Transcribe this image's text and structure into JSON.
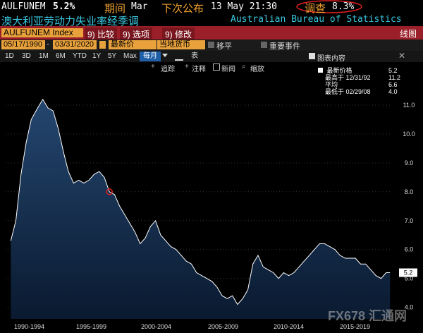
{
  "header": {
    "ticker": "AULFUNEM",
    "value": "5.2%",
    "period_label": "期间",
    "period_value": "Mar",
    "next_release_label": "下次公布",
    "next_release_value": "13 May 21:30",
    "survey_label": "调查",
    "survey_value": "8.3%",
    "title_cn": "澳大利亚劳动力失业率经季调",
    "source": "Australian Bureau of Statistics"
  },
  "toolbar": {
    "index_field": "AULFUNEM Index",
    "compare": "9) 比较",
    "options": "9) 选项",
    "edit": "9) 修改",
    "chart_label": "线图"
  },
  "controls": {
    "start_date": "05/17/1990",
    "end_date": "03/31/2020",
    "price_field": "最新价",
    "currency_field": "当地货币",
    "smooth_label": "移平",
    "events_label": "重要事件"
  },
  "ranges": {
    "items": [
      "1D",
      "3D",
      "1M",
      "6M",
      "YTD",
      "1Y",
      "5Y",
      "Max"
    ],
    "frequency": "每月",
    "chart_icon_label": "表",
    "table_content": "图表内容"
  },
  "tools": {
    "track": "追踪",
    "annotate": "注释",
    "news": "新闻",
    "zoom": "缩放"
  },
  "legend": {
    "latest_label": "最新价格",
    "latest_value": "5.2",
    "high_label": "最高于",
    "high_date": "12/31/92",
    "high_value": "11.2",
    "avg_label": "平均",
    "avg_value": "6.6",
    "low_label": "最低于",
    "low_date": "02/29/08",
    "low_value": "4.0"
  },
  "watermark": "FX678 汇通网",
  "chart_data": {
    "type": "area",
    "ylim": [
      3.6,
      12.0
    ],
    "yticks": [
      4.0,
      5.0,
      6.0,
      7.0,
      8.0,
      9.0,
      10.0,
      11.0
    ],
    "last_label": "5.2",
    "x_labels": [
      "1990-1994",
      "1995-1999",
      "2000-2004",
      "2005-2009",
      "2010-2014",
      "2015-2019"
    ],
    "x": [
      1990.4,
      1990.8,
      1991.2,
      1991.6,
      1992.0,
      1992.5,
      1992.9,
      1993.3,
      1993.7,
      1994.1,
      1994.5,
      1994.9,
      1995.3,
      1995.7,
      1996.1,
      1996.5,
      1996.9,
      1997.3,
      1997.7,
      1998.1,
      1998.5,
      1998.9,
      1999.3,
      1999.7,
      2000.1,
      2000.5,
      2000.9,
      2001.3,
      2001.7,
      2002.1,
      2002.5,
      2002.9,
      2003.3,
      2003.7,
      2004.1,
      2004.5,
      2004.9,
      2005.3,
      2005.7,
      2006.1,
      2006.5,
      2006.9,
      2007.3,
      2007.7,
      2008.1,
      2008.5,
      2008.9,
      2009.3,
      2009.7,
      2010.1,
      2010.5,
      2010.9,
      2011.3,
      2011.7,
      2012.1,
      2012.5,
      2012.9,
      2013.3,
      2013.7,
      2014.1,
      2014.5,
      2014.9,
      2015.3,
      2015.7,
      2016.1,
      2016.5,
      2016.9,
      2017.3,
      2017.7,
      2018.1,
      2018.5,
      2018.9,
      2019.3,
      2019.7,
      2020.0
    ],
    "values": [
      6.3,
      7.0,
      8.6,
      9.7,
      10.5,
      10.9,
      11.2,
      10.9,
      10.8,
      10.2,
      9.4,
      8.7,
      8.3,
      8.4,
      8.3,
      8.4,
      8.6,
      8.7,
      8.5,
      8.0,
      7.9,
      7.5,
      7.2,
      6.9,
      6.6,
      6.2,
      6.4,
      6.8,
      7.0,
      6.5,
      6.3,
      6.1,
      6.0,
      5.8,
      5.6,
      5.5,
      5.2,
      5.1,
      5.0,
      4.9,
      4.7,
      4.4,
      4.3,
      4.4,
      4.1,
      4.3,
      4.6,
      5.5,
      5.8,
      5.4,
      5.3,
      5.2,
      5.0,
      5.2,
      5.1,
      5.2,
      5.4,
      5.6,
      5.8,
      6.0,
      6.2,
      6.2,
      6.1,
      6.0,
      5.8,
      5.7,
      5.7,
      5.7,
      5.5,
      5.5,
      5.3,
      5.1,
      5.0,
      5.2,
      5.2
    ]
  }
}
